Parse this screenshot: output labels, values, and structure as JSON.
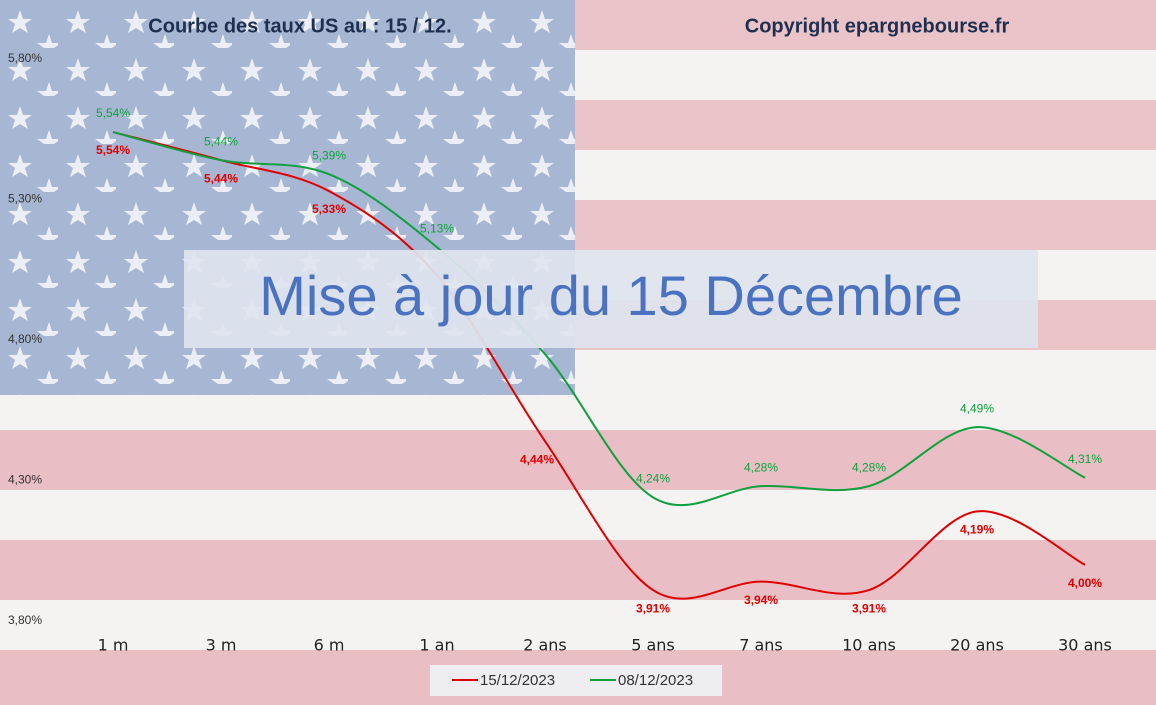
{
  "chart_data": {
    "type": "line",
    "title": "Courbe des taux US au : 15 / 12.",
    "subtitle": "Copyright epargnebourse.fr",
    "annotation": "Mise à jour du 15 Décembre",
    "categories": [
      "1 m",
      "3 m",
      "6 m",
      "1 an",
      "2 ans",
      "5 ans",
      "7 ans",
      "10 ans",
      "20 ans",
      "30 ans"
    ],
    "series": [
      {
        "name": "15/12/2023",
        "color": "#e00000",
        "values": [
          5.54,
          5.44,
          5.33,
          5.03,
          4.44,
          3.91,
          3.94,
          3.91,
          4.19,
          4.0
        ],
        "value_labels": [
          "5,54%",
          "5,44%",
          "5,33%",
          null,
          "4,44%",
          "3,91%",
          "3,94%",
          "3,91%",
          "4,19%",
          "4,00%"
        ]
      },
      {
        "name": "08/12/2023",
        "color": "#10a040",
        "values": [
          5.54,
          5.44,
          5.39,
          5.13,
          4.75,
          4.24,
          4.28,
          4.28,
          4.49,
          4.31
        ],
        "value_labels": [
          "5,54%",
          "5,44%",
          "5,39%",
          "5,13%",
          null,
          "4,24%",
          "4,28%",
          "4,28%",
          "4,49%",
          "4,31%"
        ]
      }
    ],
    "ylim": [
      3.8,
      5.8
    ],
    "yticks": [
      {
        "value": 3.8,
        "label": "3,80%"
      },
      {
        "value": 4.3,
        "label": "4,30%"
      },
      {
        "value": 4.8,
        "label": "4,80%"
      },
      {
        "value": 5.3,
        "label": "5,30%"
      },
      {
        "value": 5.8,
        "label": "5,80%"
      }
    ]
  }
}
